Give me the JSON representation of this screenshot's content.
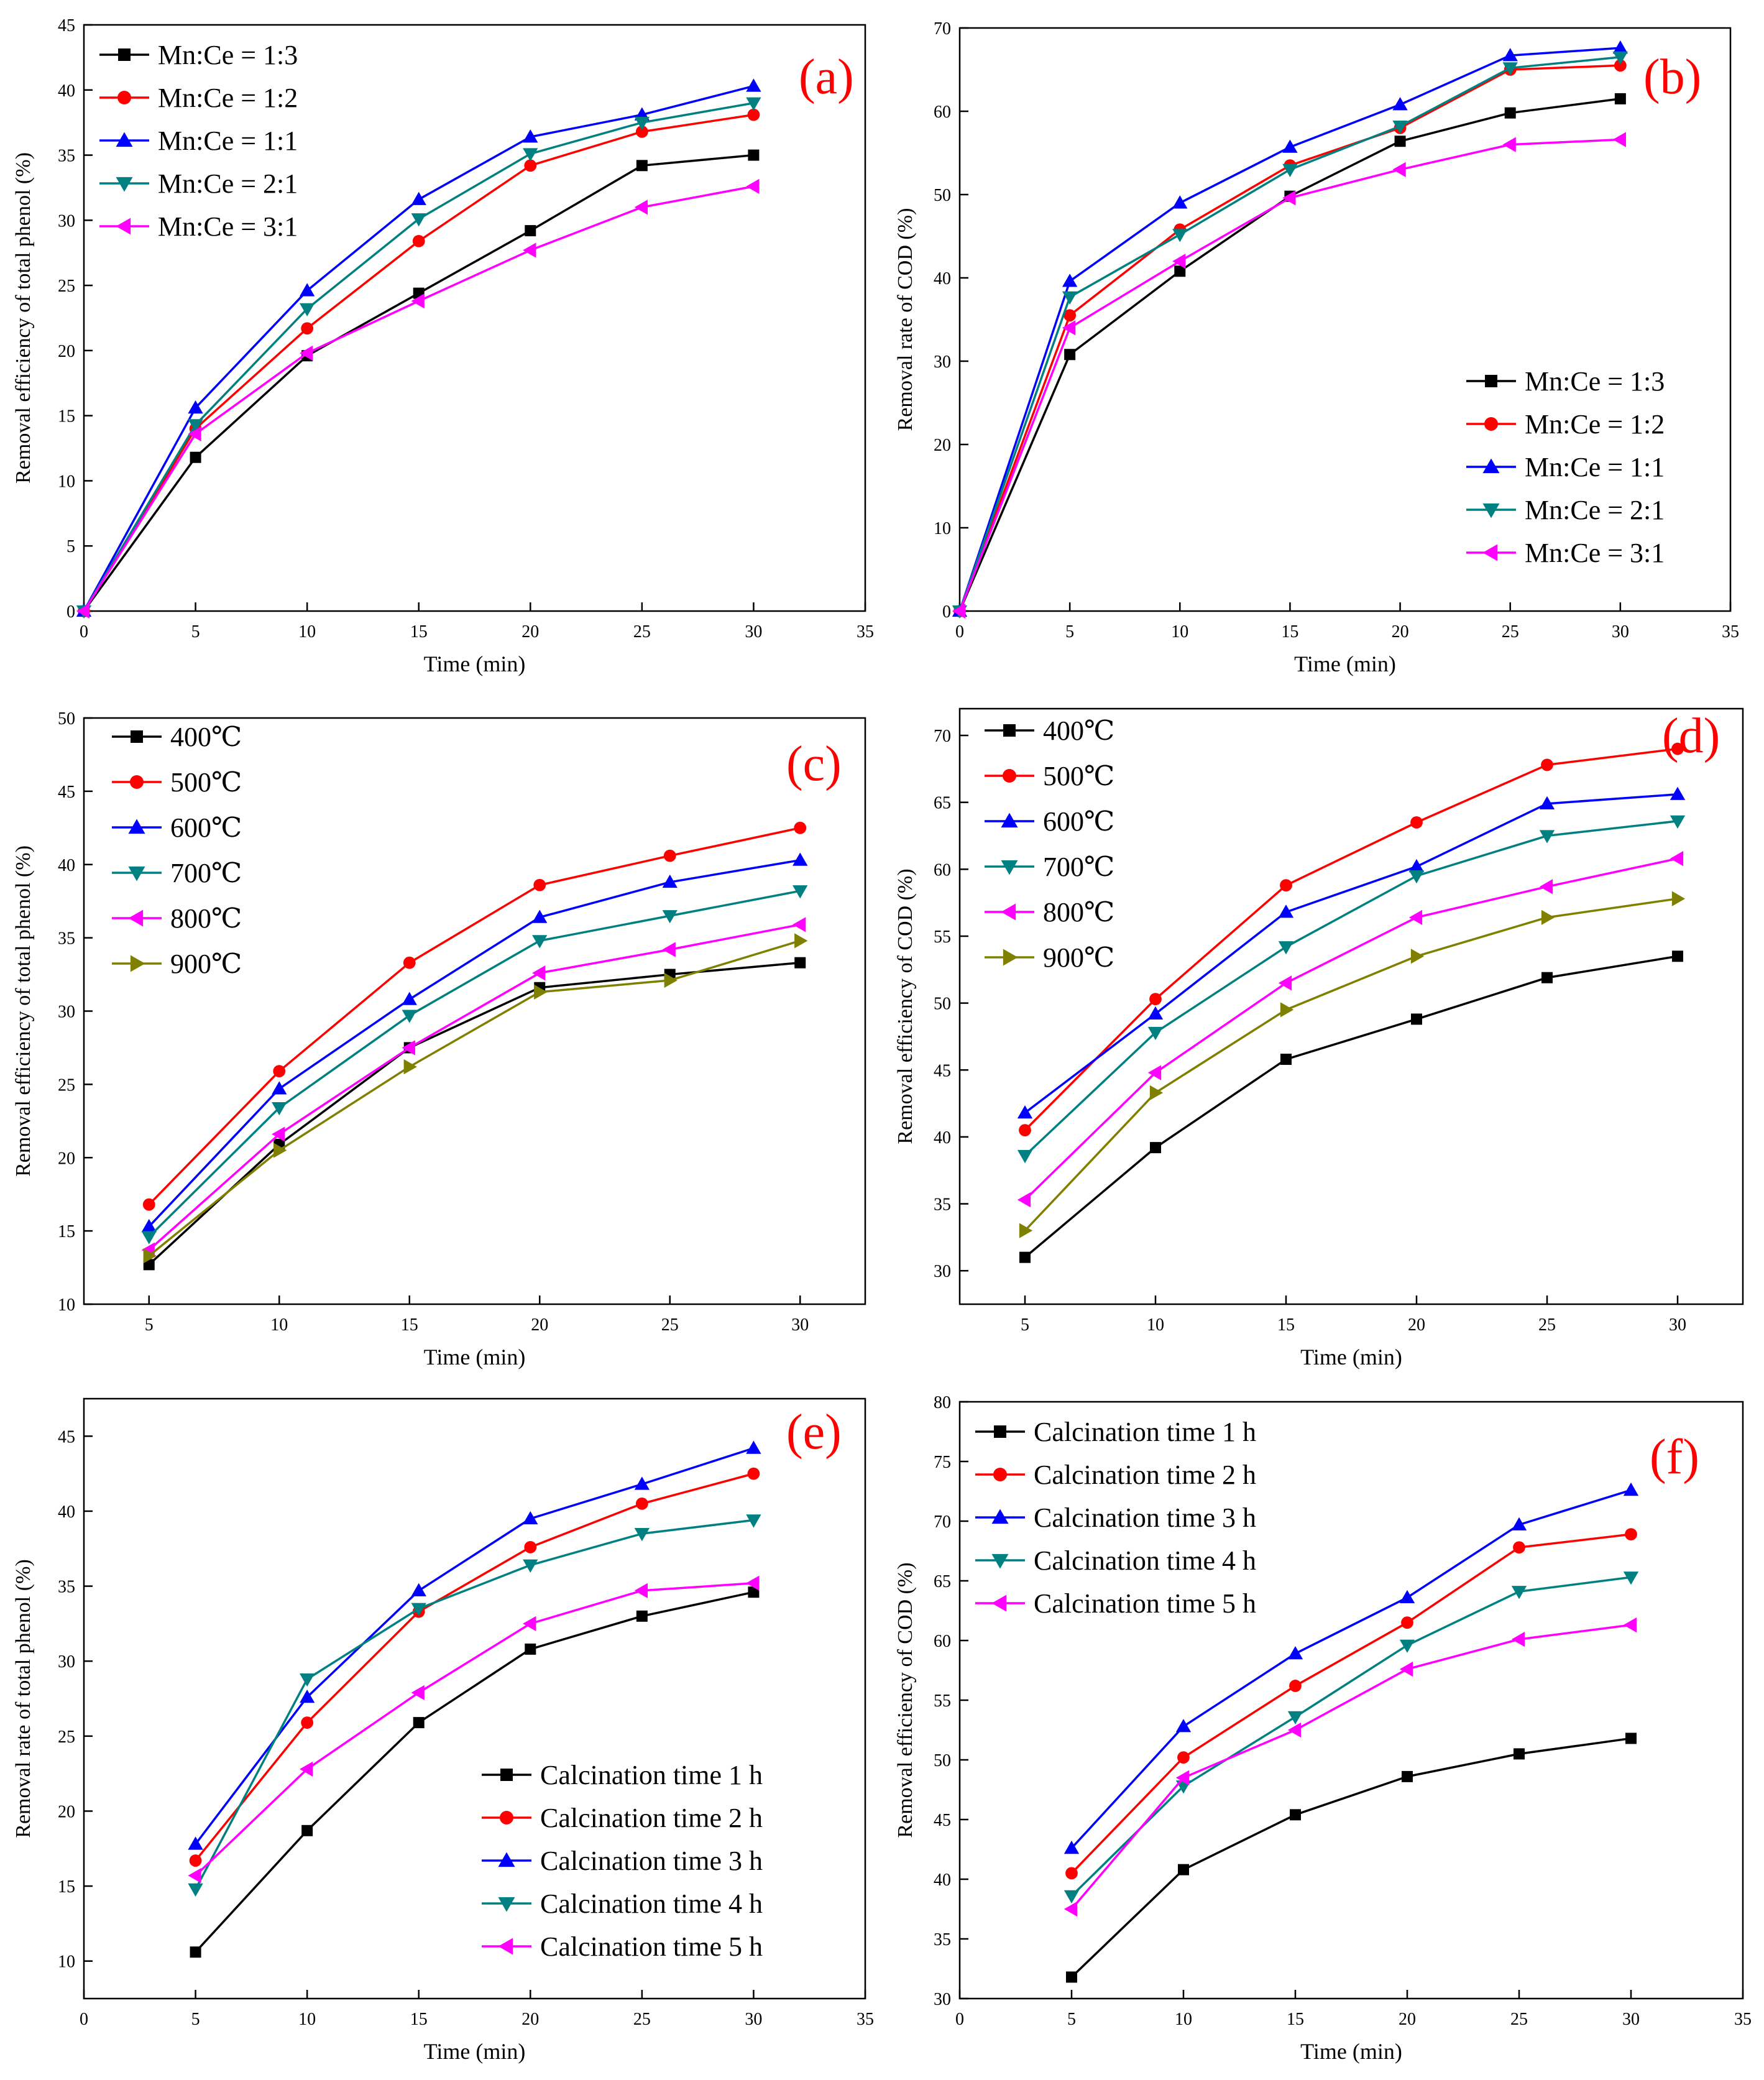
{
  "figure": {
    "description_title": ""
  },
  "chart_data": [
    {
      "id": "a",
      "type": "line",
      "panel_label": "(a)",
      "xlabel": "Time (min)",
      "ylabel": "Removal efficiency of total phenol (%)",
      "xlim": [
        0,
        35
      ],
      "ylim": [
        0,
        45
      ],
      "xticks": [
        0,
        5,
        10,
        15,
        20,
        25,
        30,
        35
      ],
      "yticks": [
        0,
        5,
        10,
        15,
        20,
        25,
        30,
        35,
        40,
        45
      ],
      "legend_position": "top-left",
      "x": [
        0,
        5,
        10,
        15,
        20,
        25,
        30
      ],
      "series": [
        {
          "name": "Mn:Ce = 1:3",
          "color": "#000000",
          "marker": "square",
          "values": [
            0,
            11.8,
            19.6,
            24.4,
            29.2,
            34.2,
            35.0
          ]
        },
        {
          "name": "Mn:Ce = 1:2",
          "color": "#ff0000",
          "marker": "circle",
          "values": [
            0,
            14.0,
            21.7,
            28.4,
            34.2,
            36.8,
            38.1
          ]
        },
        {
          "name": "Mn:Ce = 1:1",
          "color": "#0000ff",
          "marker": "triangle-up",
          "values": [
            0,
            15.6,
            24.6,
            31.6,
            36.4,
            38.1,
            40.3
          ]
        },
        {
          "name": "Mn:Ce = 2:1",
          "color": "#008080",
          "marker": "triangle-down",
          "values": [
            0,
            14.3,
            23.2,
            30.1,
            35.1,
            37.5,
            39.0
          ]
        },
        {
          "name": "Mn:Ce = 3:1",
          "color": "#ff00ff",
          "marker": "triangle-left",
          "values": [
            0,
            13.6,
            19.8,
            23.8,
            27.7,
            31.0,
            32.6
          ]
        }
      ]
    },
    {
      "id": "b",
      "type": "line",
      "panel_label": "(b)",
      "xlabel": "Time (min)",
      "ylabel": "Removal rate of COD (%)",
      "xlim": [
        0,
        35
      ],
      "ylim": [
        0,
        70
      ],
      "xticks": [
        0,
        5,
        10,
        15,
        20,
        25,
        30,
        35
      ],
      "yticks": [
        0,
        10,
        20,
        30,
        40,
        50,
        60,
        70
      ],
      "legend_position": "bottom-right",
      "x": [
        0,
        5,
        10,
        15,
        20,
        25,
        30
      ],
      "series": [
        {
          "name": "Mn:Ce = 1:3",
          "color": "#000000",
          "marker": "square",
          "values": [
            0,
            30.8,
            40.8,
            49.8,
            56.4,
            59.8,
            61.5
          ]
        },
        {
          "name": "Mn:Ce = 1:2",
          "color": "#ff0000",
          "marker": "circle",
          "values": [
            0,
            35.5,
            45.8,
            53.5,
            58.0,
            65.0,
            65.5
          ]
        },
        {
          "name": "Mn:Ce = 1:1",
          "color": "#0000ff",
          "marker": "triangle-up",
          "values": [
            0,
            39.6,
            49.0,
            55.7,
            60.8,
            66.7,
            67.6
          ]
        },
        {
          "name": "Mn:Ce = 2:1",
          "color": "#008080",
          "marker": "triangle-down",
          "values": [
            0,
            37.7,
            45.2,
            53.0,
            58.2,
            65.2,
            66.5
          ]
        },
        {
          "name": "Mn:Ce = 3:1",
          "color": "#ff00ff",
          "marker": "triangle-left",
          "values": [
            0,
            34.0,
            42.0,
            49.6,
            53.0,
            56.0,
            56.6
          ]
        }
      ]
    },
    {
      "id": "c",
      "type": "line",
      "panel_label": "(c)",
      "xlabel": "Time (min)",
      "ylabel": "Removal efficiency of total phenol (%)",
      "xlim": [
        2.5,
        32.5
      ],
      "ylim": [
        10,
        50
      ],
      "xticks": [
        5,
        10,
        15,
        20,
        25,
        30
      ],
      "yticks": [
        10,
        15,
        20,
        25,
        30,
        35,
        40,
        45,
        50
      ],
      "legend_position": "top-left",
      "x": [
        5,
        10,
        15,
        20,
        25,
        30
      ],
      "series": [
        {
          "name": "400℃",
          "color": "#000000",
          "marker": "square",
          "values": [
            12.7,
            20.9,
            27.5,
            31.6,
            32.5,
            33.3
          ]
        },
        {
          "name": "500℃",
          "color": "#ff0000",
          "marker": "circle",
          "values": [
            16.8,
            25.9,
            33.3,
            38.6,
            40.6,
            42.5
          ]
        },
        {
          "name": "600℃",
          "color": "#0000ff",
          "marker": "triangle-up",
          "values": [
            15.3,
            24.7,
            30.8,
            36.4,
            38.8,
            40.3
          ]
        },
        {
          "name": "700℃",
          "color": "#008080",
          "marker": "triangle-down",
          "values": [
            14.6,
            23.4,
            29.7,
            34.8,
            36.5,
            38.2
          ]
        },
        {
          "name": "800℃",
          "color": "#ff00ff",
          "marker": "triangle-left",
          "values": [
            13.7,
            21.6,
            27.5,
            32.6,
            34.2,
            35.9
          ]
        },
        {
          "name": "900℃",
          "color": "#808000",
          "marker": "triangle-right",
          "values": [
            13.3,
            20.5,
            26.2,
            31.3,
            32.1,
            34.8
          ]
        }
      ]
    },
    {
      "id": "d",
      "type": "line",
      "panel_label": "(d)",
      "xlabel": "Time (min)",
      "ylabel": "Removal efficiency of COD (%)",
      "xlim": [
        2.5,
        32.5
      ],
      "ylim": [
        27.5,
        72
      ],
      "xticks": [
        5,
        10,
        15,
        20,
        25,
        30
      ],
      "yticks": [
        30,
        35,
        40,
        45,
        50,
        55,
        60,
        65,
        70
      ],
      "legend_position": "top-left",
      "x": [
        5,
        10,
        15,
        20,
        25,
        30
      ],
      "series": [
        {
          "name": "400℃",
          "color": "#000000",
          "marker": "square",
          "values": [
            31.0,
            39.2,
            45.8,
            48.8,
            51.9,
            53.5
          ]
        },
        {
          "name": "500℃",
          "color": "#ff0000",
          "marker": "circle",
          "values": [
            40.5,
            50.3,
            58.8,
            63.5,
            67.8,
            69.0
          ]
        },
        {
          "name": "600℃",
          "color": "#0000ff",
          "marker": "triangle-up",
          "values": [
            41.8,
            49.2,
            56.8,
            60.2,
            64.9,
            65.6
          ]
        },
        {
          "name": "700℃",
          "color": "#008080",
          "marker": "triangle-down",
          "values": [
            38.6,
            47.8,
            54.2,
            59.5,
            62.5,
            63.6
          ]
        },
        {
          "name": "800℃",
          "color": "#ff00ff",
          "marker": "triangle-left",
          "values": [
            35.3,
            44.8,
            51.5,
            56.4,
            58.7,
            60.8
          ]
        },
        {
          "name": "900℃",
          "color": "#808000",
          "marker": "triangle-right",
          "values": [
            33.0,
            43.3,
            49.5,
            53.5,
            56.4,
            57.8
          ]
        }
      ]
    },
    {
      "id": "e",
      "type": "line",
      "panel_label": "(e)",
      "xlabel": "Time (min)",
      "ylabel": "Removal rate of total phenol (%)",
      "xlim": [
        0,
        35
      ],
      "ylim": [
        7.5,
        47.5
      ],
      "xticks": [
        0,
        5,
        10,
        15,
        20,
        25,
        30,
        35
      ],
      "yticks": [
        10,
        15,
        20,
        25,
        30,
        35,
        40,
        45
      ],
      "legend_position": "bottom-right",
      "x": [
        5,
        10,
        15,
        20,
        25,
        30
      ],
      "series": [
        {
          "name": "Calcination time 1 h",
          "color": "#000000",
          "marker": "square",
          "values": [
            10.6,
            18.7,
            25.9,
            30.8,
            33.0,
            34.6
          ]
        },
        {
          "name": "Calcination time 2 h",
          "color": "#ff0000",
          "marker": "circle",
          "values": [
            16.7,
            25.9,
            33.3,
            37.6,
            40.5,
            42.5
          ]
        },
        {
          "name": "Calcination time 3 h",
          "color": "#0000ff",
          "marker": "triangle-up",
          "values": [
            17.8,
            27.6,
            34.7,
            39.5,
            41.8,
            44.2
          ]
        },
        {
          "name": "Calcination time 4 h",
          "color": "#008080",
          "marker": "triangle-down",
          "values": [
            14.8,
            28.8,
            33.5,
            36.4,
            38.5,
            39.4
          ]
        },
        {
          "name": "Calcination time 5 h",
          "color": "#ff00ff",
          "marker": "triangle-left",
          "values": [
            15.7,
            22.8,
            27.9,
            32.5,
            34.7,
            35.2
          ]
        }
      ]
    },
    {
      "id": "f",
      "type": "line",
      "panel_label": "(f)",
      "xlabel": "Time (min)",
      "ylabel": "Removal efficiency of COD (%)",
      "xlim": [
        0,
        35
      ],
      "ylim": [
        30,
        80
      ],
      "xticks": [
        0,
        5,
        10,
        15,
        20,
        25,
        30,
        35
      ],
      "yticks": [
        30,
        35,
        40,
        45,
        50,
        55,
        60,
        65,
        70,
        75,
        80
      ],
      "legend_position": "top-left",
      "x": [
        5,
        10,
        15,
        20,
        25,
        30
      ],
      "series": [
        {
          "name": "Calcination time 1 h",
          "color": "#000000",
          "marker": "square",
          "values": [
            31.8,
            40.8,
            45.4,
            48.6,
            50.5,
            51.8
          ]
        },
        {
          "name": "Calcination time 2 h",
          "color": "#ff0000",
          "marker": "circle",
          "values": [
            40.5,
            50.2,
            56.2,
            61.5,
            67.8,
            68.9
          ]
        },
        {
          "name": "Calcination time 3 h",
          "color": "#0000ff",
          "marker": "triangle-up",
          "values": [
            42.6,
            52.8,
            58.9,
            63.6,
            69.7,
            72.6
          ]
        },
        {
          "name": "Calcination time 4 h",
          "color": "#008080",
          "marker": "triangle-down",
          "values": [
            38.6,
            47.8,
            53.6,
            59.6,
            64.1,
            65.3
          ]
        },
        {
          "name": "Calcination time 5 h",
          "color": "#ff00ff",
          "marker": "triangle-left",
          "values": [
            37.5,
            48.5,
            52.5,
            57.6,
            60.1,
            61.3
          ]
        }
      ]
    }
  ]
}
